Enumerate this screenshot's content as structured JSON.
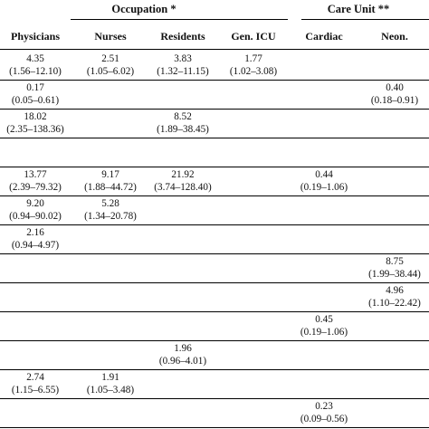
{
  "table": {
    "group_headers": {
      "occupation": "Occupation *",
      "care_unit": "Care Unit **"
    },
    "columns": [
      "Physicians",
      "Nurses",
      "Residents",
      "Gen. ICU",
      "Cardiac",
      "Neon."
    ],
    "rows": [
      {
        "cells": [
          {
            "value": "4.35",
            "ci": "(1.56–12.10)"
          },
          {
            "value": "2.51",
            "ci": "(1.05–6.02)"
          },
          {
            "value": "3.83",
            "ci": "(1.32–11.15)"
          },
          {
            "value": "1.77",
            "ci": "(1.02–3.08)"
          },
          null,
          null
        ]
      },
      {
        "cells": [
          {
            "value": "0.17",
            "ci": "(0.05–0.61)"
          },
          null,
          null,
          null,
          null,
          {
            "value": "0.40",
            "ci": "(0.18–0.91)"
          }
        ]
      },
      {
        "cells": [
          {
            "value": "18.02",
            "ci": "(2.35–138.36)"
          },
          null,
          {
            "value": "8.52",
            "ci": "(1.89–38.45)"
          },
          null,
          null,
          null
        ]
      },
      {
        "cells": [
          null,
          null,
          null,
          null,
          null,
          null
        ]
      },
      {
        "cells": [
          {
            "value": "13.77",
            "ci": "(2.39–79.32)"
          },
          {
            "value": "9.17",
            "ci": "(1.88–44.72)"
          },
          {
            "value": "21.92",
            "ci": "(3.74–128.40)"
          },
          null,
          {
            "value": "0.44",
            "ci": "(0.19–1.06)"
          },
          null
        ]
      },
      {
        "cells": [
          {
            "value": "9.20",
            "ci": "(0.94–90.02)"
          },
          {
            "value": "5.28",
            "ci": "(1.34–20.78)"
          },
          null,
          null,
          null,
          null
        ]
      },
      {
        "cells": [
          {
            "value": "2.16",
            "ci": "(0.94–4.97)"
          },
          null,
          null,
          null,
          null,
          null
        ]
      },
      {
        "cells": [
          null,
          null,
          null,
          null,
          null,
          {
            "value": "8.75",
            "ci": "(1.99–38.44)"
          }
        ]
      },
      {
        "cells": [
          null,
          null,
          null,
          null,
          null,
          {
            "value": "4.96",
            "ci": "(1.10–22.42)"
          }
        ]
      },
      {
        "cells": [
          null,
          null,
          null,
          null,
          {
            "value": "0.45",
            "ci": "(0.19–1.06)"
          },
          null
        ]
      },
      {
        "cells": [
          null,
          null,
          {
            "value": "1.96",
            "ci": "(0.96–4.01)"
          },
          null,
          null,
          null
        ]
      },
      {
        "cells": [
          {
            "value": "2.74",
            "ci": "(1.15–6.55)"
          },
          {
            "value": "1.91",
            "ci": "(1.05–3.48)"
          },
          null,
          null,
          null,
          null
        ]
      },
      {
        "cells": [
          null,
          null,
          null,
          null,
          {
            "value": "0.23",
            "ci": "(0.09–0.56)"
          },
          null
        ]
      }
    ]
  }
}
